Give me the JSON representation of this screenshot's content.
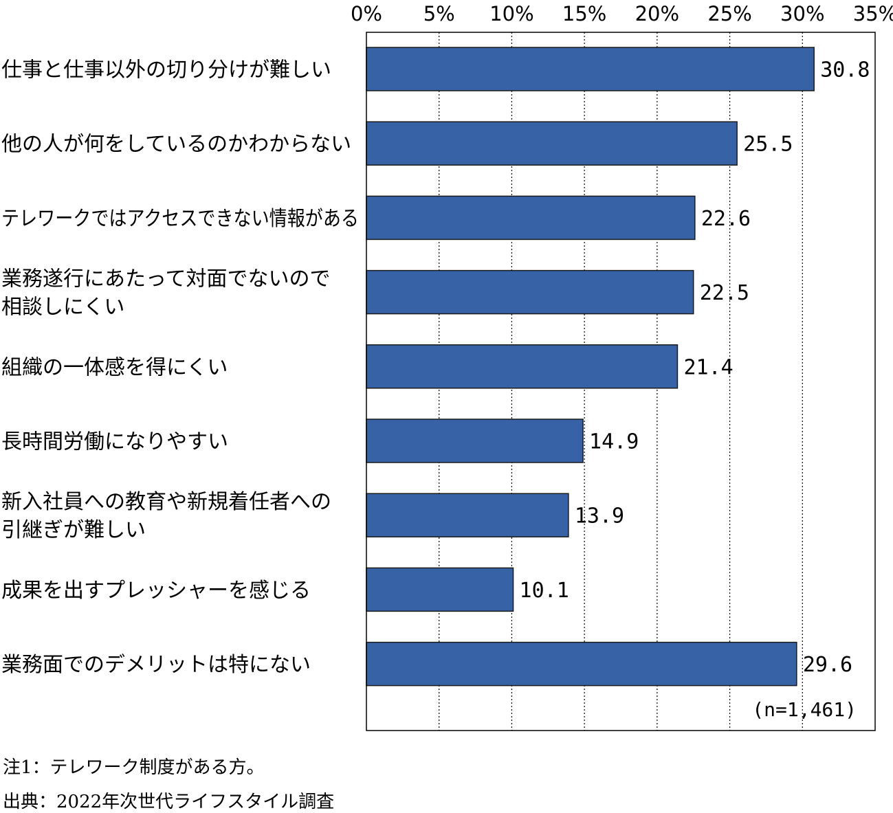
{
  "chart_data": {
    "type": "bar",
    "orientation": "horizontal",
    "categories": [
      [
        "仕事と仕事以外の切り分けが難しい"
      ],
      [
        "他の人が何をしているのかわからない"
      ],
      [
        "テレワークではアクセスできない情報がある"
      ],
      [
        "業務遂行にあたって対面でないので",
        "相談しにくい"
      ],
      [
        "組織の一体感を得にくい"
      ],
      [
        "長時間労働になりやすい"
      ],
      [
        "新入社員への教育や新規着任者への",
        "引継ぎが難しい"
      ],
      [
        "成果を出すプレッシャーを感じる"
      ],
      [
        "業務面でのデメリットは特にない"
      ]
    ],
    "values": [
      30.8,
      25.5,
      22.6,
      22.5,
      21.4,
      14.9,
      13.9,
      10.1,
      29.6
    ],
    "value_labels": [
      "30.8",
      "25.5",
      "22.6",
      "22.5",
      "21.4",
      "14.9",
      "13.9",
      "10.1",
      "29.6"
    ],
    "xlim": [
      0,
      35
    ],
    "x_ticks": [
      0,
      5,
      10,
      15,
      20,
      25,
      30,
      35
    ],
    "x_tick_labels": [
      "0%",
      "5%",
      "10%",
      "15%",
      "20%",
      "25%",
      "30%",
      "35%"
    ],
    "x_axis_position": "top",
    "gridlines": "vertical-dotted",
    "bar_color": "#3762A6",
    "bar_edge_color": "#1a1a1a",
    "sample_size": "(n=1,461)"
  },
  "notes": {
    "note1": "注1：テレワーク制度がある方。",
    "source": "出典：2022年次世代ライフスタイル調査"
  }
}
